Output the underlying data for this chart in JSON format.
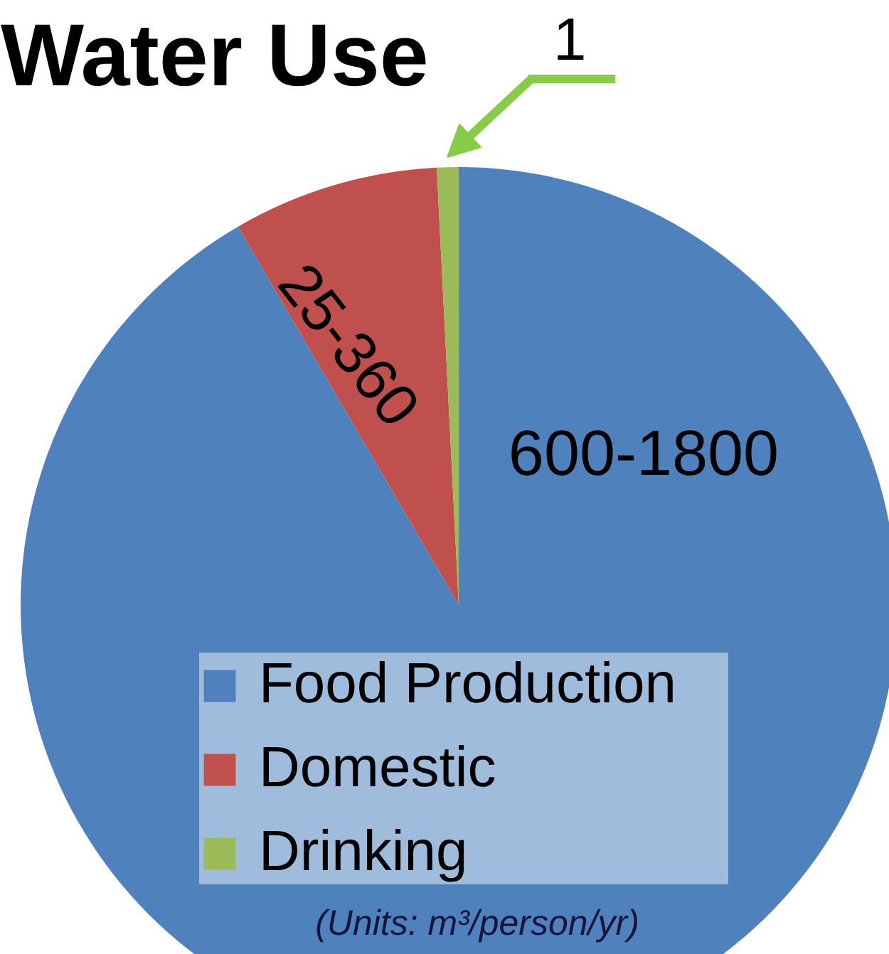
{
  "chart_data": {
    "type": "pie",
    "title": "Water Use",
    "categories": [
      "Food Production",
      "Domestic",
      "Drinking"
    ],
    "values": [
      91.6,
      7.6,
      0.8
    ],
    "colors": [
      "#4f81bd",
      "#c0504d",
      "#9bbb59"
    ],
    "value_labels": [
      "600-1800",
      "25-360",
      "1"
    ],
    "legend": "bottom",
    "annotations": [
      "(Units: m³/person/yr)"
    ]
  }
}
